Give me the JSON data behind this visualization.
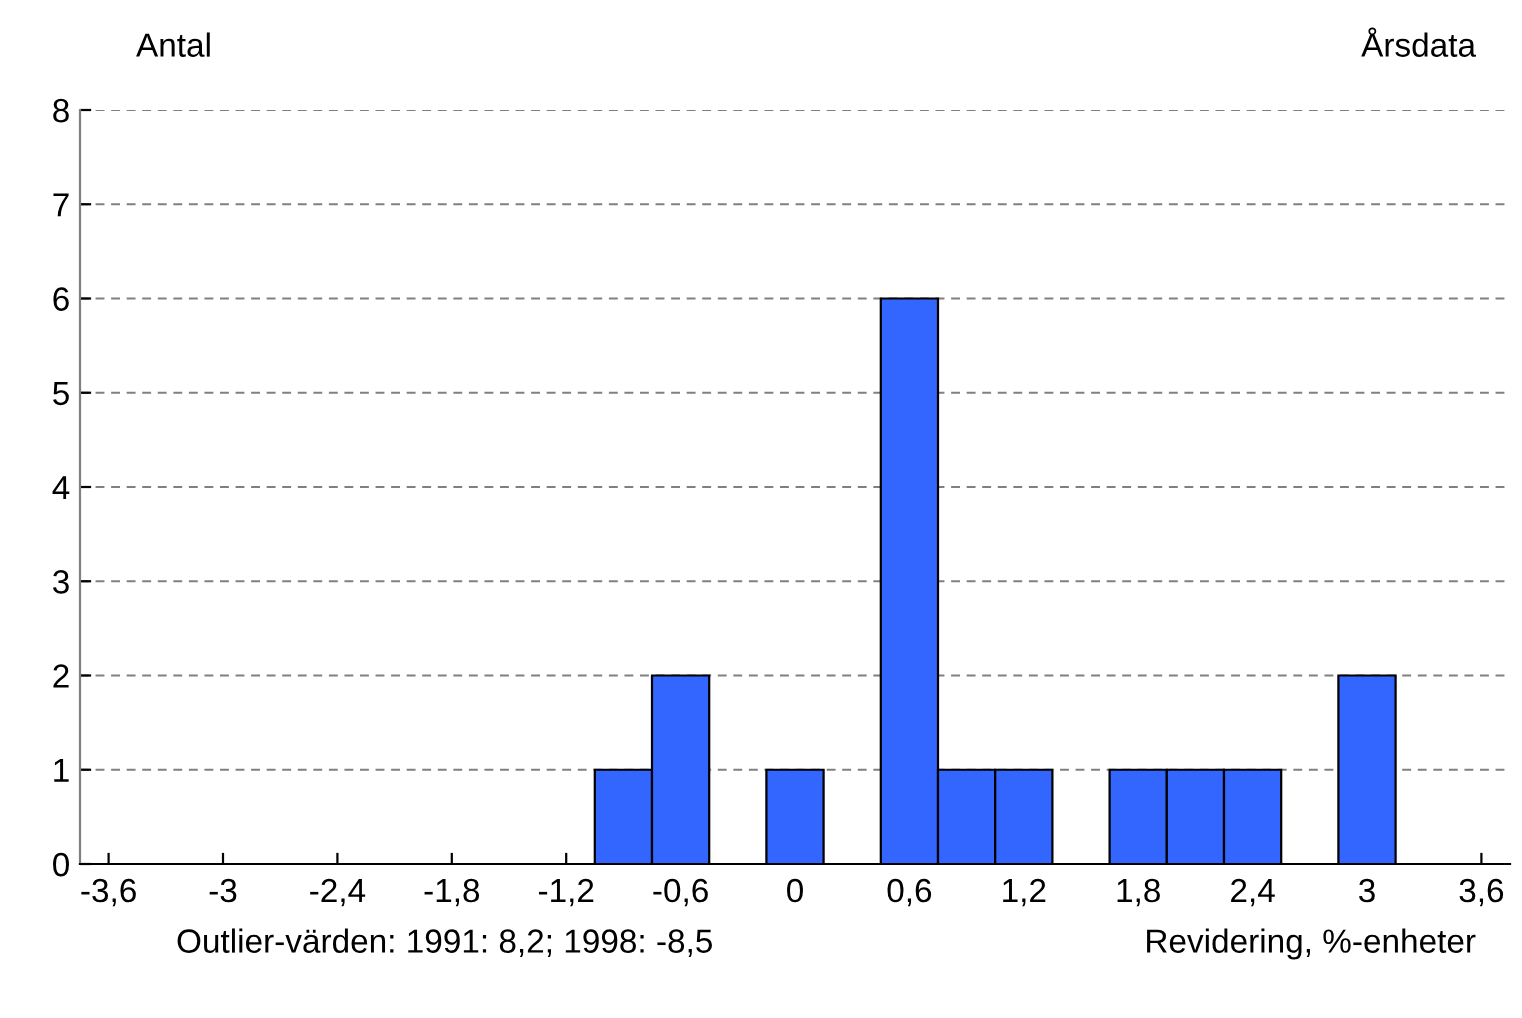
{
  "chart_data": {
    "type": "histogram",
    "title": "Årsdata",
    "ylabel": "Antal",
    "xlabel": "Revidering, %-enheter",
    "annotations": [
      "Outlier-värden: 1991: 8,2; 1998: -8,5"
    ],
    "bins": [
      -3.75,
      -3.45,
      -3.15,
      -2.85,
      -2.55,
      -2.25,
      -1.95,
      -1.65,
      -1.35,
      -1.05,
      -0.75,
      -0.45,
      -0.15,
      0.15,
      0.45,
      0.75,
      1.05,
      1.35,
      1.65,
      1.95,
      2.25,
      2.55,
      2.85,
      3.15,
      3.45,
      3.75
    ],
    "values": [
      0,
      0,
      0,
      0,
      0,
      0,
      0,
      0,
      0,
      1,
      2,
      0,
      1,
      0,
      6,
      1,
      1,
      0,
      1,
      1,
      1,
      0,
      2,
      0,
      0
    ],
    "color": "#3366ff",
    "xlim": [
      -3.75,
      3.75
    ],
    "xticks": [
      {
        "value": -3.6,
        "label": "-3,6"
      },
      -3,
      {
        "value": -2.4,
        "label": "-2,4"
      },
      {
        "value": -1.8,
        "label": "-1,8"
      },
      {
        "value": -1.2,
        "label": "-1,2"
      },
      {
        "value": -0.6,
        "label": "-0,6"
      },
      0,
      {
        "value": 0.6,
        "label": "0,6"
      },
      {
        "value": 1.2,
        "label": "1,2"
      },
      {
        "value": 1.8,
        "label": "1,8"
      },
      {
        "value": 2.4,
        "label": "2,4"
      },
      3,
      {
        "value": 3.6,
        "label": "3,6"
      }
    ],
    "ylim": [
      0,
      8
    ],
    "yticks": [
      0,
      1,
      2,
      3,
      4,
      5,
      6,
      7,
      8
    ],
    "grid": "y",
    "legend": false
  }
}
